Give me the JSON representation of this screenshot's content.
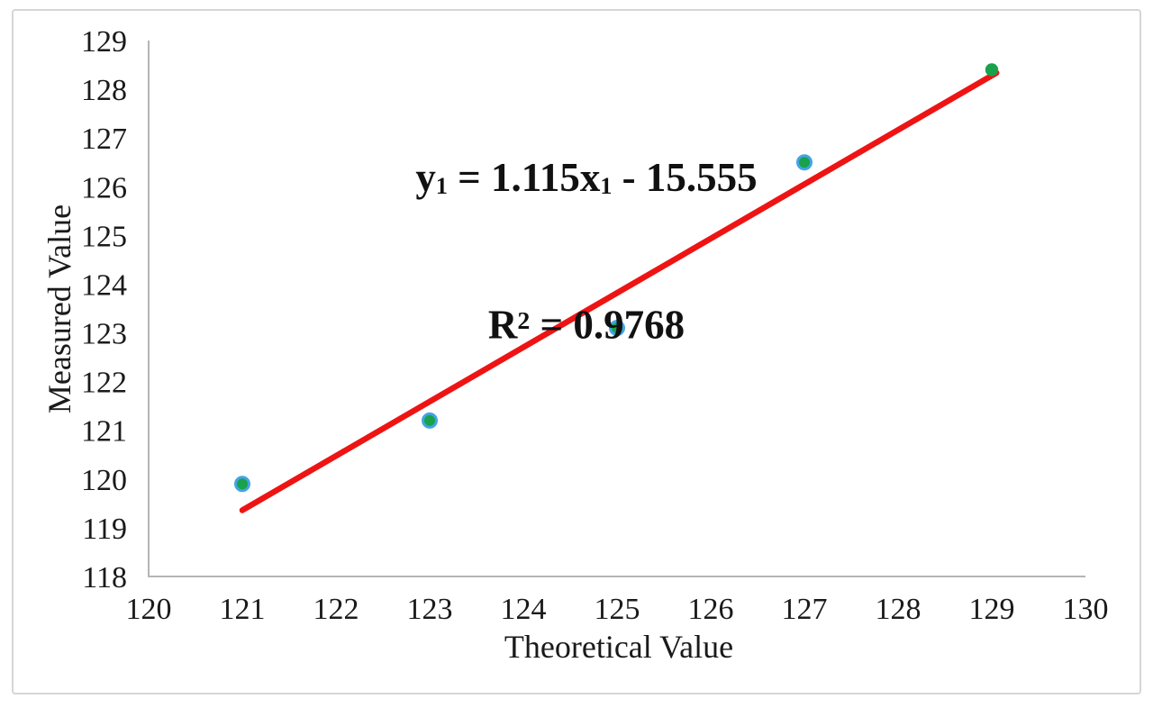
{
  "figure": {
    "border_color": "#d6d6d6",
    "background": "#ffffff"
  },
  "chart_data": {
    "type": "scatter",
    "title": "",
    "xlabel": "Theoretical Value",
    "ylabel": "Measured Value",
    "xlim": [
      120,
      130
    ],
    "ylim": [
      118,
      129
    ],
    "x_ticks": [
      120,
      121,
      122,
      123,
      124,
      125,
      126,
      127,
      128,
      129,
      130
    ],
    "y_ticks": [
      118,
      119,
      120,
      121,
      122,
      123,
      124,
      125,
      126,
      127,
      128,
      129
    ],
    "grid": false,
    "legend": "none",
    "axis_color": "#b5b5b5",
    "text_color": "#1a1a1a",
    "points": [
      {
        "x": 121,
        "y": 119.9,
        "ring": true
      },
      {
        "x": 123,
        "y": 121.2,
        "ring": true
      },
      {
        "x": 125,
        "y": 123.1,
        "ring": true
      },
      {
        "x": 127,
        "y": 126.5,
        "ring": true
      },
      {
        "x": 129,
        "y": 128.4,
        "ring": false
      }
    ],
    "marker": {
      "fill": "#19a24b",
      "ring_color": "#44a4e4"
    },
    "trendline": {
      "slope": 1.115,
      "intercept": -15.555,
      "x_start": 121,
      "x_end": 129.05,
      "color": "#ee1414",
      "width": 6.5
    },
    "annotation": {
      "line1": {
        "var": "y",
        "var_sub": "1",
        "mid": " = 1.115x",
        "mid_sub": "1",
        "tail": " - 15.555"
      },
      "line2": {
        "var": "R",
        "sup": "2",
        "tail": " = 0.9768"
      },
      "r_squared": 0.9768
    }
  }
}
